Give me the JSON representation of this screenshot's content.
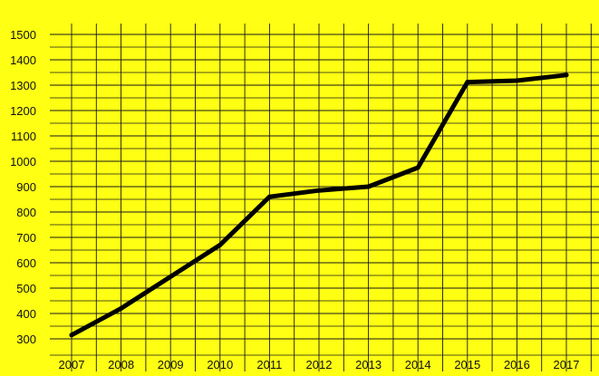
{
  "colors": {
    "background": "#ffff14",
    "grid": "#1a1a1a",
    "line": "#000000",
    "text": "#111111"
  },
  "chart_data": {
    "type": "line",
    "title": "",
    "xlabel": "",
    "ylabel": "",
    "grid": true,
    "x": [
      "2007",
      "2008",
      "2009",
      "2010",
      "2011",
      "2012",
      "2013",
      "2014",
      "2015",
      "2016",
      "2017"
    ],
    "series": [
      {
        "values": [
          315,
          420,
          545,
          670,
          860,
          885,
          900,
          975,
          1312,
          1318,
          1340
        ]
      }
    ],
    "ylim": [
      300,
      1500
    ],
    "yticks": [
      300,
      400,
      500,
      600,
      700,
      800,
      900,
      1000,
      1100,
      1200,
      1300,
      1400,
      1500
    ]
  }
}
